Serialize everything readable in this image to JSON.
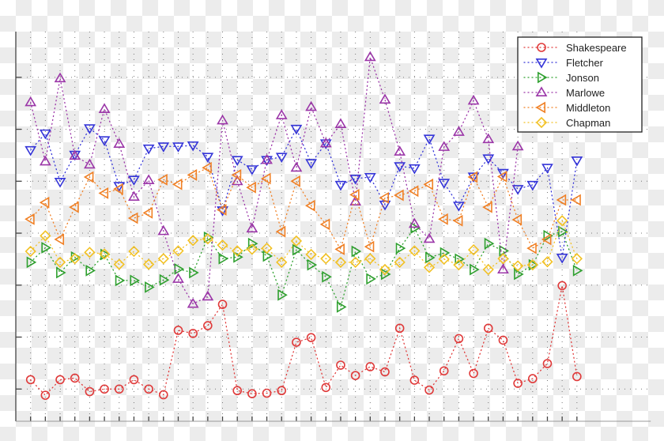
{
  "chart_data": {
    "type": "line",
    "title": "",
    "xlabel": "",
    "ylabel": "",
    "x": [
      1,
      2,
      3,
      4,
      5,
      6,
      7,
      8,
      9,
      10,
      11,
      12,
      13,
      14,
      15,
      16,
      17,
      18,
      19,
      20,
      21,
      22,
      23,
      24,
      25,
      26,
      27,
      28,
      29,
      30,
      31,
      32,
      33,
      34,
      35,
      36,
      37,
      38
    ],
    "xlim": [
      0,
      43
    ],
    "ylim": [
      0.38,
      7.88
    ],
    "y_gridlines": [
      1,
      2,
      3,
      4,
      5,
      6,
      7
    ],
    "grid": true,
    "tick_labels_shown": false,
    "line_style": "dotted",
    "legend_position": "top-right",
    "series": [
      {
        "name": "Shakespeare",
        "marker": "circle",
        "color": "#e03a3a",
        "values": [
          1.18,
          0.88,
          1.18,
          1.21,
          0.95,
          1.0,
          1.0,
          1.18,
          1.0,
          0.89,
          2.13,
          2.07,
          2.22,
          2.63,
          0.97,
          0.91,
          0.92,
          0.97,
          1.9,
          1.99,
          1.03,
          1.46,
          1.26,
          1.43,
          1.33,
          2.17,
          1.17,
          0.98,
          1.35,
          1.97,
          1.3,
          2.17,
          1.94,
          1.11,
          1.2,
          1.49,
          2.99,
          1.24
        ]
      },
      {
        "name": "Fletcher",
        "marker": "triangle-down",
        "color": "#3535d8",
        "values": [
          5.6,
          5.92,
          4.99,
          5.51,
          6.02,
          5.79,
          4.91,
          5.03,
          5.63,
          5.67,
          5.67,
          5.69,
          5.47,
          4.44,
          5.41,
          5.23,
          5.41,
          5.47,
          6.01,
          5.35,
          5.73,
          4.93,
          5.05,
          5.08,
          4.55,
          5.29,
          5.25,
          5.82,
          4.97,
          4.53,
          5.09,
          5.44,
          5.16,
          4.85,
          4.93,
          5.26,
          3.53,
          5.4
        ]
      },
      {
        "name": "Jonson",
        "marker": "triangle-right",
        "color": "#2fa02f",
        "values": [
          3.44,
          3.72,
          3.24,
          3.54,
          3.28,
          3.59,
          3.09,
          3.09,
          2.96,
          3.1,
          3.31,
          3.24,
          3.92,
          3.51,
          3.54,
          3.8,
          3.56,
          2.81,
          3.68,
          3.39,
          3.16,
          2.58,
          3.65,
          3.12,
          3.21,
          3.71,
          4.1,
          3.53,
          3.62,
          3.5,
          3.3,
          3.8,
          3.66,
          3.21,
          3.39,
          3.95,
          4.03,
          3.28
        ]
      },
      {
        "name": "Marlowe",
        "marker": "triangle-up",
        "color": "#9b36a8",
        "values": [
          6.52,
          5.38,
          6.98,
          5.49,
          5.32,
          6.39,
          5.72,
          4.7,
          5.02,
          4.04,
          3.12,
          2.64,
          2.78,
          6.17,
          5.0,
          4.09,
          5.41,
          6.27,
          5.26,
          6.43,
          5.73,
          6.1,
          4.61,
          7.39,
          6.57,
          5.57,
          4.18,
          3.89,
          5.66,
          5.95,
          6.55,
          5.81,
          3.3,
          5.67,
          null,
          null,
          null,
          null
        ]
      },
      {
        "name": "Middleton",
        "marker": "triangle-left",
        "color": "#f08025",
        "values": [
          4.27,
          4.59,
          3.88,
          4.5,
          5.08,
          4.77,
          4.85,
          4.29,
          4.39,
          5.03,
          4.94,
          5.12,
          5.26,
          4.45,
          5.12,
          4.88,
          5.05,
          4.03,
          5.0,
          4.53,
          4.17,
          3.69,
          4.74,
          3.74,
          4.68,
          4.73,
          4.81,
          4.94,
          4.27,
          4.24,
          5.08,
          4.5,
          5.09,
          4.26,
          3.71,
          3.88,
          4.64,
          4.64
        ]
      },
      {
        "name": "Chapman",
        "marker": "diamond",
        "color": "#f2c124",
        "values": [
          3.65,
          3.95,
          3.44,
          3.51,
          3.63,
          3.6,
          3.4,
          3.65,
          3.4,
          3.51,
          3.66,
          3.86,
          3.89,
          3.77,
          3.66,
          3.69,
          3.71,
          3.44,
          3.85,
          3.59,
          3.51,
          3.44,
          3.44,
          3.51,
          3.3,
          3.44,
          3.66,
          3.34,
          3.5,
          3.39,
          3.68,
          3.3,
          3.51,
          3.37,
          3.39,
          3.45,
          4.24,
          3.51
        ]
      }
    ]
  }
}
